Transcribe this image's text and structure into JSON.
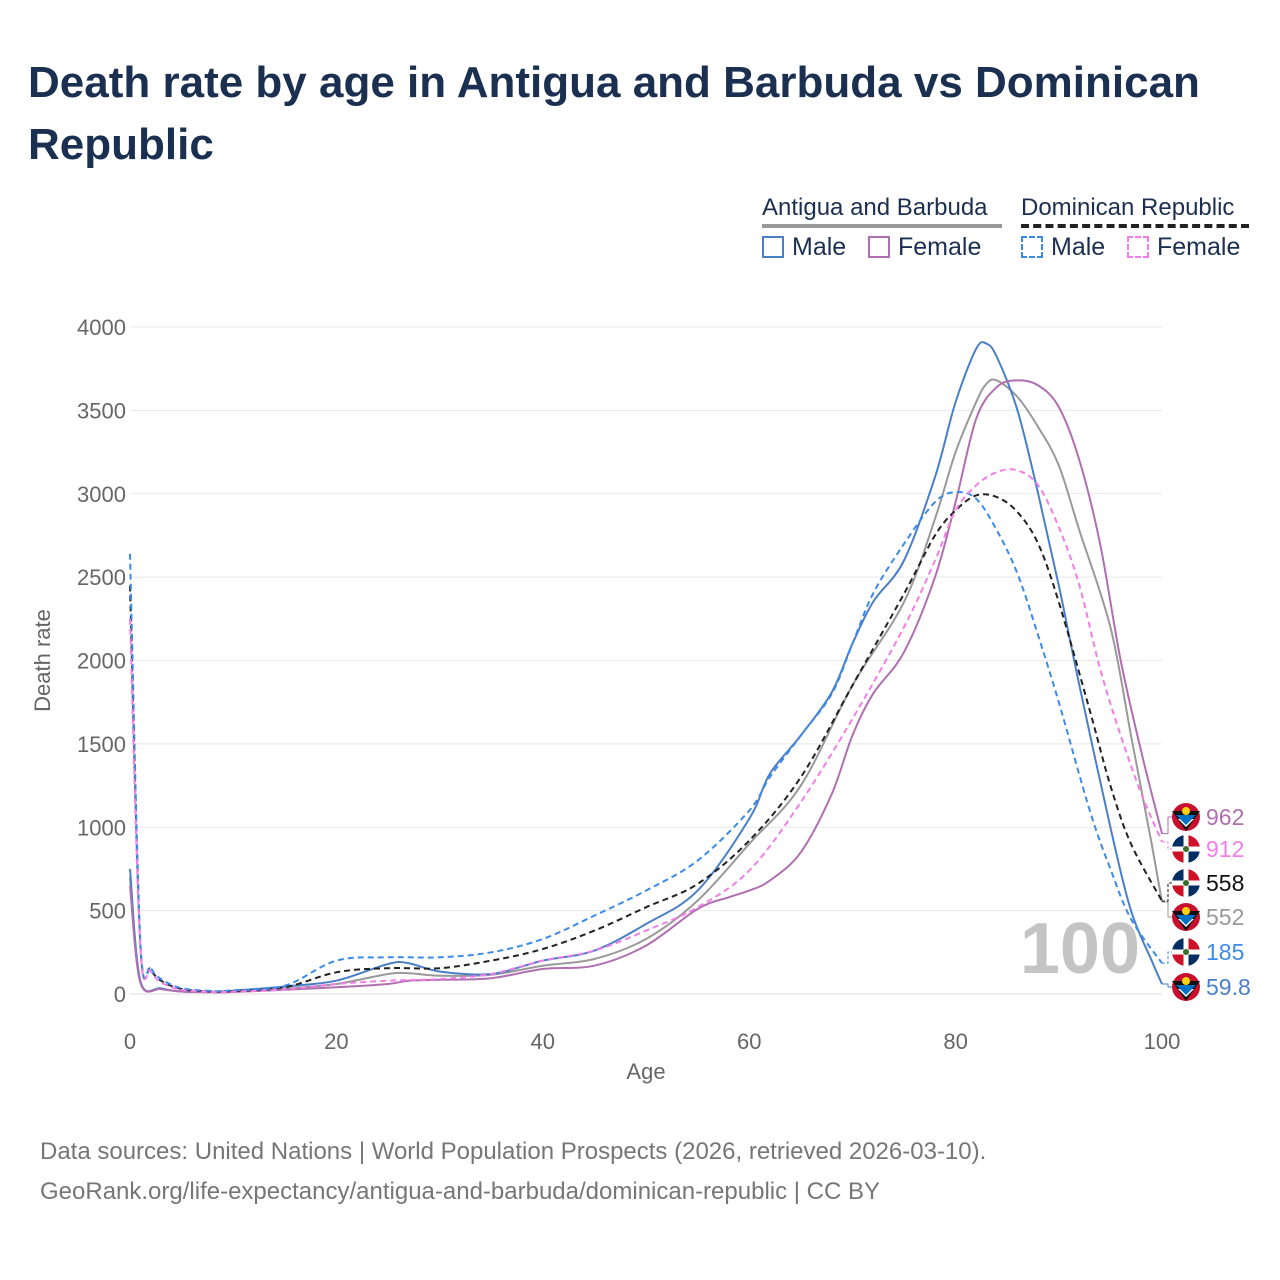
{
  "title": "Death rate by age in Antigua and Barbuda vs Dominican Republic",
  "legend": {
    "group1": "Antigua and Barbuda",
    "group2": "Dominican Republic",
    "male": "Male",
    "female": "Female"
  },
  "colors": {
    "ab_male": "#4a7fc8",
    "ab_female": "#b06fb0",
    "ab_total": "#999999",
    "dr_male": "#3d8be8",
    "dr_female": "#f27ee8",
    "dr_total": "#222222",
    "title": "#1b3050",
    "axis_text": "#666666",
    "watermark": "#c4c4c4"
  },
  "source_line1": "Data sources: United Nations | World Population Prospects (2026, retrieved 2026-03-10).",
  "source_line2": "GeoRank.org/life-expectancy/antigua-and-barbuda/dominican-republic | CC BY",
  "chart_data": {
    "type": "line",
    "xlabel": "Age",
    "ylabel": "Death rate",
    "xlim": [
      0,
      100
    ],
    "ylim": [
      0,
      4000
    ],
    "xticks": [
      "0",
      "20",
      "40",
      "60",
      "80",
      "100"
    ],
    "yticks": [
      "0",
      "500",
      "1000",
      "1500",
      "2000",
      "2500",
      "3000",
      "3500",
      "4000"
    ],
    "grid": true,
    "watermark": "100",
    "series": [
      {
        "name": "Antigua and Barbuda Total",
        "key": "ab_total",
        "dash": false,
        "points": [
          [
            0,
            700
          ],
          [
            1,
            75
          ],
          [
            3,
            32
          ],
          [
            5,
            15
          ],
          [
            8,
            12
          ],
          [
            10,
            15
          ],
          [
            15,
            32
          ],
          [
            20,
            60
          ],
          [
            25,
            120
          ],
          [
            27,
            125
          ],
          [
            30,
            110
          ],
          [
            35,
            115
          ],
          [
            40,
            170
          ],
          [
            45,
            210
          ],
          [
            50,
            330
          ],
          [
            55,
            560
          ],
          [
            60,
            900
          ],
          [
            65,
            1250
          ],
          [
            70,
            1850
          ],
          [
            75,
            2350
          ],
          [
            78,
            2850
          ],
          [
            80,
            3250
          ],
          [
            82,
            3550
          ],
          [
            83,
            3660
          ],
          [
            84,
            3680
          ],
          [
            86,
            3580
          ],
          [
            88,
            3400
          ],
          [
            90,
            3170
          ],
          [
            92,
            2780
          ],
          [
            95,
            2200
          ],
          [
            97,
            1550
          ],
          [
            99,
            900
          ],
          [
            100,
            552
          ]
        ],
        "end_label": "552",
        "flag": "ab"
      },
      {
        "name": "Antigua and Barbuda Male",
        "key": "ab_male",
        "dash": false,
        "points": [
          [
            0,
            750
          ],
          [
            1,
            80
          ],
          [
            3,
            35
          ],
          [
            5,
            15
          ],
          [
            8,
            12
          ],
          [
            10,
            20
          ],
          [
            15,
            45
          ],
          [
            20,
            80
          ],
          [
            25,
            180
          ],
          [
            27,
            185
          ],
          [
            30,
            135
          ],
          [
            35,
            120
          ],
          [
            40,
            200
          ],
          [
            45,
            260
          ],
          [
            50,
            420
          ],
          [
            55,
            620
          ],
          [
            60,
            1050
          ],
          [
            62,
            1320
          ],
          [
            65,
            1550
          ],
          [
            68,
            1810
          ],
          [
            70,
            2100
          ],
          [
            72,
            2350
          ],
          [
            75,
            2600
          ],
          [
            78,
            3100
          ],
          [
            80,
            3550
          ],
          [
            82,
            3870
          ],
          [
            83,
            3900
          ],
          [
            84,
            3820
          ],
          [
            86,
            3500
          ],
          [
            88,
            3000
          ],
          [
            90,
            2450
          ],
          [
            92,
            1850
          ],
          [
            95,
            1000
          ],
          [
            97,
            500
          ],
          [
            99,
            200
          ],
          [
            100,
            59.8
          ]
        ],
        "end_label": "59.8",
        "flag": "ab"
      },
      {
        "name": "Antigua and Barbuda Female",
        "key": "ab_female",
        "dash": false,
        "points": [
          [
            0,
            650
          ],
          [
            1,
            70
          ],
          [
            3,
            30
          ],
          [
            5,
            15
          ],
          [
            8,
            10
          ],
          [
            10,
            12
          ],
          [
            15,
            25
          ],
          [
            20,
            40
          ],
          [
            25,
            60
          ],
          [
            27,
            80
          ],
          [
            30,
            85
          ],
          [
            35,
            95
          ],
          [
            40,
            150
          ],
          [
            45,
            170
          ],
          [
            50,
            290
          ],
          [
            55,
            510
          ],
          [
            58,
            580
          ],
          [
            60,
            620
          ],
          [
            62,
            680
          ],
          [
            65,
            850
          ],
          [
            68,
            1200
          ],
          [
            70,
            1550
          ],
          [
            72,
            1800
          ],
          [
            75,
            2050
          ],
          [
            78,
            2500
          ],
          [
            80,
            2950
          ],
          [
            82,
            3450
          ],
          [
            84,
            3640
          ],
          [
            86,
            3680
          ],
          [
            88,
            3650
          ],
          [
            90,
            3520
          ],
          [
            92,
            3200
          ],
          [
            94,
            2700
          ],
          [
            96,
            2000
          ],
          [
            98,
            1450
          ],
          [
            100,
            962
          ]
        ],
        "end_label": "962",
        "flag": "ab"
      },
      {
        "name": "Dominican Republic Total",
        "key": "dr_total",
        "dash": true,
        "points": [
          [
            0,
            2450
          ],
          [
            1,
            300
          ],
          [
            2,
            150
          ],
          [
            3,
            80
          ],
          [
            5,
            30
          ],
          [
            8,
            15
          ],
          [
            10,
            18
          ],
          [
            15,
            40
          ],
          [
            20,
            130
          ],
          [
            25,
            155
          ],
          [
            30,
            155
          ],
          [
            35,
            200
          ],
          [
            40,
            270
          ],
          [
            45,
            380
          ],
          [
            50,
            520
          ],
          [
            55,
            660
          ],
          [
            60,
            920
          ],
          [
            65,
            1300
          ],
          [
            70,
            1850
          ],
          [
            75,
            2400
          ],
          [
            78,
            2750
          ],
          [
            80,
            2900
          ],
          [
            82,
            2990
          ],
          [
            84,
            2980
          ],
          [
            86,
            2890
          ],
          [
            88,
            2700
          ],
          [
            90,
            2350
          ],
          [
            93,
            1700
          ],
          [
            95,
            1250
          ],
          [
            97,
            900
          ],
          [
            100,
            558
          ]
        ],
        "end_label": "558",
        "flag": "dr"
      },
      {
        "name": "Dominican Republic Male",
        "key": "dr_male",
        "dash": true,
        "points": [
          [
            0,
            2640
          ],
          [
            1,
            320
          ],
          [
            2,
            160
          ],
          [
            3,
            90
          ],
          [
            5,
            35
          ],
          [
            8,
            18
          ],
          [
            10,
            22
          ],
          [
            15,
            50
          ],
          [
            20,
            200
          ],
          [
            25,
            220
          ],
          [
            30,
            220
          ],
          [
            35,
            250
          ],
          [
            40,
            330
          ],
          [
            45,
            470
          ],
          [
            50,
            620
          ],
          [
            55,
            800
          ],
          [
            60,
            1100
          ],
          [
            62,
            1300
          ],
          [
            65,
            1550
          ],
          [
            68,
            1800
          ],
          [
            70,
            2100
          ],
          [
            72,
            2400
          ],
          [
            75,
            2700
          ],
          [
            78,
            2950
          ],
          [
            80,
            3010
          ],
          [
            82,
            2970
          ],
          [
            84,
            2780
          ],
          [
            86,
            2520
          ],
          [
            88,
            2150
          ],
          [
            90,
            1750
          ],
          [
            93,
            1100
          ],
          [
            95,
            750
          ],
          [
            97,
            450
          ],
          [
            100,
            185
          ]
        ],
        "end_label": "185",
        "flag": "dr"
      },
      {
        "name": "Dominican Republic Female",
        "key": "dr_female",
        "dash": true,
        "points": [
          [
            0,
            2250
          ],
          [
            1,
            280
          ],
          [
            2,
            140
          ],
          [
            3,
            70
          ],
          [
            5,
            25
          ],
          [
            8,
            12
          ],
          [
            10,
            14
          ],
          [
            15,
            28
          ],
          [
            20,
            60
          ],
          [
            25,
            80
          ],
          [
            30,
            90
          ],
          [
            35,
            120
          ],
          [
            40,
            200
          ],
          [
            45,
            260
          ],
          [
            50,
            380
          ],
          [
            55,
            520
          ],
          [
            60,
            740
          ],
          [
            65,
            1150
          ],
          [
            70,
            1650
          ],
          [
            75,
            2200
          ],
          [
            78,
            2600
          ],
          [
            80,
            2900
          ],
          [
            82,
            3050
          ],
          [
            84,
            3130
          ],
          [
            86,
            3140
          ],
          [
            88,
            3050
          ],
          [
            90,
            2800
          ],
          [
            92,
            2450
          ],
          [
            94,
            1950
          ],
          [
            96,
            1550
          ],
          [
            98,
            1200
          ],
          [
            100,
            912
          ]
        ],
        "end_label": "912",
        "flag": "dr"
      }
    ]
  }
}
